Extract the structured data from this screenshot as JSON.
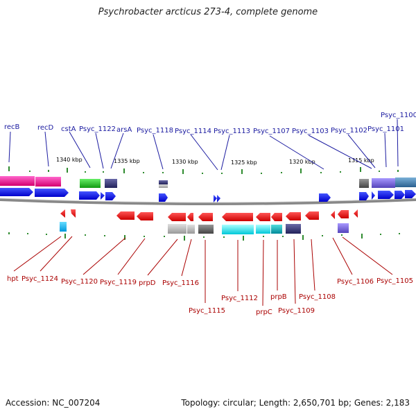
{
  "title": "Psychrobacter arcticus 273-4, complete genome",
  "footer": {
    "accession": "Accession: NC_007204",
    "stats": "Topology: circular; Length: 2,650,701 bp; Genes: 2,183"
  },
  "scale_labels": [
    "1340 kbp",
    "1335 kbp",
    "1330 kbp",
    "1325 kbp",
    "1320 kbp",
    "1315 kbp"
  ],
  "top_labels": [
    "recB",
    "recD",
    "cstA",
    "Psyc_1122",
    "arsA",
    "Psyc_1118",
    "Psyc_1114",
    "Psyc_1113",
    "Psyc_1107",
    "Psyc_1103",
    "Psyc_1102",
    "Psyc_1101",
    "Psyc_1100"
  ],
  "bottom_labels": [
    "hpt",
    "Psyc_1124",
    "Psyc_1120",
    "Psyc_1119",
    "prpD",
    "Psyc_1116",
    "Psyc_1115",
    "Psyc_1112",
    "prpC",
    "prpB",
    "Psyc_1109",
    "Psyc_1108",
    "Psyc_1106",
    "Psyc_1105"
  ],
  "colors": {
    "forward_gene": "#0a14e6",
    "reverse_gene": "#ee1111",
    "top_label": "#1a1aa0",
    "bottom_label": "#aa0000",
    "backbone": "#888888"
  }
}
